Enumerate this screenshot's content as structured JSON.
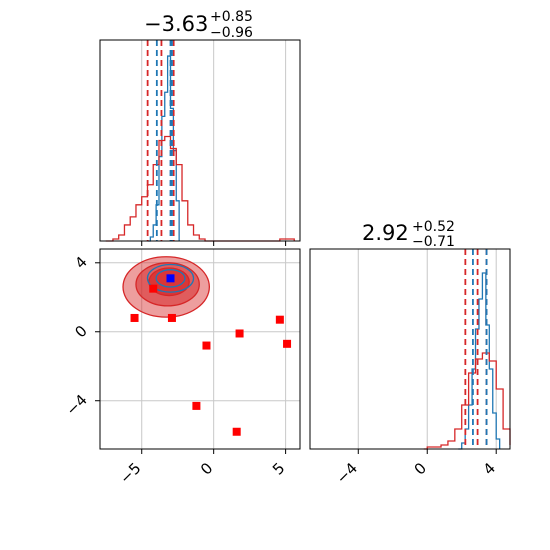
{
  "colors": {
    "blue": "#1f77b4",
    "red": "#d62728",
    "marker_red": "#ff0000",
    "marker_blue": "#0000ff",
    "grid": "#c8c8c8",
    "axis": "#000000"
  },
  "chart_data": [
    {
      "type": "line",
      "panel": "top-left histogram (param 1 marginal)",
      "title": {
        "value": "−3.63",
        "plus": "+0.85",
        "minus": "−0.96"
      },
      "xlim": [
        -7.9,
        6.0
      ],
      "ylim": [
        0,
        1.0
      ],
      "xticks": [
        -5,
        0,
        5
      ],
      "ylabel": "",
      "xlabel": "",
      "grid": true,
      "series": [
        {
          "color": "blue",
          "step": true,
          "x": [
            -4.6,
            -4.4,
            -4.2,
            -4.0,
            -3.8,
            -3.6,
            -3.4,
            -3.2,
            -3.0,
            -2.8,
            -2.6,
            -2.4
          ],
          "y": [
            0.0,
            0.02,
            0.08,
            0.18,
            0.42,
            0.62,
            0.74,
            0.92,
            0.66,
            0.45,
            0.2,
            0.0
          ]
        },
        {
          "color": "red",
          "step": true,
          "x": [
            -7.5,
            -7.0,
            -6.6,
            -6.2,
            -5.8,
            -5.4,
            -5.0,
            -4.6,
            -4.2,
            -3.8,
            -3.4,
            -3.0,
            -2.6,
            -2.2,
            -1.8,
            -1.4,
            -1.0,
            -0.6,
            4.2,
            4.6,
            5.2,
            5.6
          ],
          "y": [
            0.0,
            0.01,
            0.03,
            0.08,
            0.12,
            0.18,
            0.22,
            0.28,
            0.38,
            0.5,
            0.52,
            0.46,
            0.38,
            0.2,
            0.08,
            0.03,
            0.01,
            0.0,
            0.0,
            0.01,
            0.01,
            0.0
          ]
        }
      ],
      "quantile_lines": [
        {
          "color": "red",
          "x": [
            -4.59,
            -3.63,
            -2.78
          ]
        },
        {
          "color": "blue",
          "x": [
            -3.95,
            -3.0,
            -2.9
          ]
        }
      ]
    },
    {
      "type": "scatter",
      "panel": "bottom-left joint (param 1 vs param 2)",
      "xlim": [
        -7.9,
        6.0
      ],
      "ylim": [
        -6.8,
        4.8
      ],
      "xticks": [
        -5,
        0,
        5
      ],
      "yticks": [
        -4,
        0,
        4
      ],
      "grid": true,
      "squares_red": [
        {
          "x": -5.5,
          "y": 0.8
        },
        {
          "x": -2.9,
          "y": 0.8
        },
        {
          "x": -0.5,
          "y": -0.8
        },
        {
          "x": 1.8,
          "y": -0.1
        },
        {
          "x": 4.6,
          "y": 0.7
        },
        {
          "x": 5.1,
          "y": -0.7
        },
        {
          "x": -1.2,
          "y": -4.3
        },
        {
          "x": 1.6,
          "y": -5.8
        },
        {
          "x": -4.2,
          "y": 2.5
        }
      ],
      "squares_blue": [
        {
          "x": -3.0,
          "y": 3.1
        }
      ],
      "red_contours": [
        {
          "cx": -3.3,
          "cy": 2.6,
          "rx": 3.0,
          "ry": 1.75,
          "alpha": 0.45
        },
        {
          "cx": -3.2,
          "cy": 2.75,
          "rx": 2.2,
          "ry": 1.25,
          "alpha": 0.55
        },
        {
          "cx": -3.1,
          "cy": 2.9,
          "rx": 1.4,
          "ry": 0.8,
          "alpha": 0.7
        }
      ],
      "blue_contours": [
        {
          "cx": -3.0,
          "cy": 3.1,
          "rx": 1.6,
          "ry": 0.8
        },
        {
          "cx": -3.0,
          "cy": 3.1,
          "rx": 1.0,
          "ry": 0.5
        }
      ]
    },
    {
      "type": "line",
      "panel": "bottom-right histogram (param 2 marginal)",
      "title": {
        "value": "2.92",
        "plus": "+0.52",
        "minus": "−0.71"
      },
      "xlim": [
        -6.8,
        4.8
      ],
      "ylim": [
        0,
        1.0
      ],
      "xticks": [
        -4,
        0,
        4
      ],
      "grid": true,
      "series": [
        {
          "color": "blue",
          "step": true,
          "x": [
            1.8,
            2.0,
            2.2,
            2.4,
            2.6,
            2.8,
            3.0,
            3.2,
            3.4,
            3.6,
            3.8,
            4.0,
            4.2
          ],
          "y": [
            0.0,
            0.03,
            0.1,
            0.22,
            0.4,
            0.6,
            0.75,
            0.88,
            0.62,
            0.4,
            0.18,
            0.05,
            0.0
          ]
        },
        {
          "color": "red",
          "step": true,
          "x": [
            -0.2,
            0.0,
            0.4,
            0.8,
            1.2,
            1.6,
            2.0,
            2.4,
            2.8,
            3.2,
            3.6,
            4.0,
            4.4,
            4.8
          ],
          "y": [
            0.0,
            0.01,
            0.01,
            0.02,
            0.04,
            0.1,
            0.22,
            0.38,
            0.45,
            0.48,
            0.44,
            0.3,
            0.1,
            0.02
          ]
        }
      ],
      "quantile_lines": [
        {
          "color": "red",
          "x": [
            2.21,
            2.92,
            3.44
          ]
        },
        {
          "color": "blue",
          "x": [
            2.65,
            3.44
          ]
        }
      ]
    }
  ]
}
